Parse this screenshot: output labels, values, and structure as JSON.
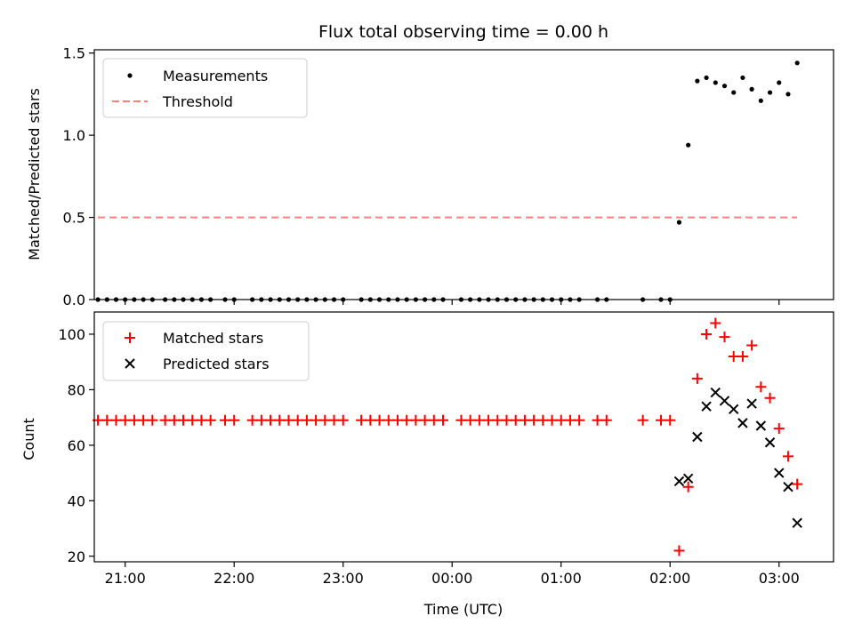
{
  "chart_data": [
    {
      "type": "scatter",
      "title": "Flux total observing time = 0.00 h",
      "xlabel": "",
      "ylabel": "Matched/Predicted stars",
      "xlim": [
        "20:43",
        "03:30"
      ],
      "ylim": [
        0,
        1.52
      ],
      "yticks": [
        "0.0",
        "0.5",
        "1.0",
        "1.5"
      ],
      "legend": {
        "position": "top-left",
        "entries": [
          "Measurements",
          "Threshold"
        ]
      },
      "colors": {
        "Measurements": "#000000",
        "Threshold": "#ff7f7f"
      },
      "series": [
        {
          "name": "Measurements",
          "points": [
            [
              "20:45",
              0.0
            ],
            [
              "20:50",
              0.0
            ],
            [
              "20:55",
              0.0
            ],
            [
              "21:00",
              0.0
            ],
            [
              "21:05",
              0.0
            ],
            [
              "21:10",
              0.0
            ],
            [
              "21:15",
              0.0
            ],
            [
              "21:22",
              0.0
            ],
            [
              "21:27",
              0.0
            ],
            [
              "21:32",
              0.0
            ],
            [
              "21:37",
              0.0
            ],
            [
              "21:42",
              0.0
            ],
            [
              "21:47",
              0.0
            ],
            [
              "21:55",
              0.0
            ],
            [
              "22:00",
              0.0
            ],
            [
              "22:10",
              0.0
            ],
            [
              "22:15",
              0.0
            ],
            [
              "22:20",
              0.0
            ],
            [
              "22:25",
              0.0
            ],
            [
              "22:30",
              0.0
            ],
            [
              "22:35",
              0.0
            ],
            [
              "22:40",
              0.0
            ],
            [
              "22:45",
              0.0
            ],
            [
              "22:50",
              0.0
            ],
            [
              "22:55",
              0.0
            ],
            [
              "23:00",
              0.0
            ],
            [
              "23:10",
              0.0
            ],
            [
              "23:15",
              0.0
            ],
            [
              "23:20",
              0.0
            ],
            [
              "23:25",
              0.0
            ],
            [
              "23:30",
              0.0
            ],
            [
              "23:35",
              0.0
            ],
            [
              "23:40",
              0.0
            ],
            [
              "23:45",
              0.0
            ],
            [
              "23:50",
              0.0
            ],
            [
              "23:55",
              0.0
            ],
            [
              "00:05",
              0.0
            ],
            [
              "00:10",
              0.0
            ],
            [
              "00:15",
              0.0
            ],
            [
              "00:20",
              0.0
            ],
            [
              "00:25",
              0.0
            ],
            [
              "00:30",
              0.0
            ],
            [
              "00:35",
              0.0
            ],
            [
              "00:40",
              0.0
            ],
            [
              "00:45",
              0.0
            ],
            [
              "00:50",
              0.0
            ],
            [
              "00:55",
              0.0
            ],
            [
              "01:00",
              0.0
            ],
            [
              "01:05",
              0.0
            ],
            [
              "01:10",
              0.0
            ],
            [
              "01:20",
              0.0
            ],
            [
              "01:25",
              0.0
            ],
            [
              "01:45",
              0.0
            ],
            [
              "01:55",
              0.0
            ],
            [
              "02:00",
              0.0
            ],
            [
              "02:05",
              0.47
            ],
            [
              "02:10",
              0.94
            ],
            [
              "02:15",
              1.33
            ],
            [
              "02:20",
              1.35
            ],
            [
              "02:25",
              1.32
            ],
            [
              "02:30",
              1.3
            ],
            [
              "02:35",
              1.26
            ],
            [
              "02:40",
              1.35
            ],
            [
              "02:45",
              1.28
            ],
            [
              "02:50",
              1.21
            ],
            [
              "02:55",
              1.26
            ],
            [
              "03:00",
              1.32
            ],
            [
              "03:05",
              1.25
            ],
            [
              "03:10",
              1.44
            ]
          ]
        },
        {
          "name": "Threshold",
          "points": [
            [
              "20:45",
              0.5
            ],
            [
              "03:10",
              0.5
            ]
          ]
        }
      ]
    },
    {
      "type": "scatter",
      "title": "",
      "xlabel": "Time (UTC)",
      "ylabel": "Count",
      "xlim": [
        "20:43",
        "03:30"
      ],
      "ylim": [
        18,
        108
      ],
      "xticks": [
        "21:00",
        "22:00",
        "23:00",
        "00:00",
        "01:00",
        "02:00",
        "03:00"
      ],
      "yticks": [
        "20",
        "40",
        "60",
        "80",
        "100"
      ],
      "legend": {
        "position": "top-left",
        "entries": [
          "Matched stars",
          "Predicted stars"
        ]
      },
      "colors": {
        "Matched stars": "#ff0000",
        "Predicted stars": "#000000"
      },
      "series": [
        {
          "name": "Matched stars",
          "points": [
            [
              "20:45",
              69
            ],
            [
              "20:50",
              69
            ],
            [
              "20:55",
              69
            ],
            [
              "21:00",
              69
            ],
            [
              "21:05",
              69
            ],
            [
              "21:10",
              69
            ],
            [
              "21:15",
              69
            ],
            [
              "21:22",
              69
            ],
            [
              "21:27",
              69
            ],
            [
              "21:32",
              69
            ],
            [
              "21:37",
              69
            ],
            [
              "21:42",
              69
            ],
            [
              "21:47",
              69
            ],
            [
              "21:55",
              69
            ],
            [
              "22:00",
              69
            ],
            [
              "22:10",
              69
            ],
            [
              "22:15",
              69
            ],
            [
              "22:20",
              69
            ],
            [
              "22:25",
              69
            ],
            [
              "22:30",
              69
            ],
            [
              "22:35",
              69
            ],
            [
              "22:40",
              69
            ],
            [
              "22:45",
              69
            ],
            [
              "22:50",
              69
            ],
            [
              "22:55",
              69
            ],
            [
              "23:00",
              69
            ],
            [
              "23:10",
              69
            ],
            [
              "23:15",
              69
            ],
            [
              "23:20",
              69
            ],
            [
              "23:25",
              69
            ],
            [
              "23:30",
              69
            ],
            [
              "23:35",
              69
            ],
            [
              "23:40",
              69
            ],
            [
              "23:45",
              69
            ],
            [
              "23:50",
              69
            ],
            [
              "23:55",
              69
            ],
            [
              "00:05",
              69
            ],
            [
              "00:10",
              69
            ],
            [
              "00:15",
              69
            ],
            [
              "00:20",
              69
            ],
            [
              "00:25",
              69
            ],
            [
              "00:30",
              69
            ],
            [
              "00:35",
              69
            ],
            [
              "00:40",
              69
            ],
            [
              "00:45",
              69
            ],
            [
              "00:50",
              69
            ],
            [
              "00:55",
              69
            ],
            [
              "01:00",
              69
            ],
            [
              "01:05",
              69
            ],
            [
              "01:10",
              69
            ],
            [
              "01:20",
              69
            ],
            [
              "01:25",
              69
            ],
            [
              "01:45",
              69
            ],
            [
              "01:55",
              69
            ],
            [
              "02:00",
              69
            ],
            [
              "02:05",
              22
            ],
            [
              "02:10",
              45
            ],
            [
              "02:15",
              84
            ],
            [
              "02:20",
              100
            ],
            [
              "02:25",
              104
            ],
            [
              "02:30",
              99
            ],
            [
              "02:35",
              92
            ],
            [
              "02:40",
              92
            ],
            [
              "02:45",
              96
            ],
            [
              "02:50",
              81
            ],
            [
              "02:55",
              77
            ],
            [
              "03:00",
              66
            ],
            [
              "03:05",
              56
            ],
            [
              "03:10",
              46
            ]
          ]
        },
        {
          "name": "Predicted stars",
          "points": [
            [
              "02:05",
              47
            ],
            [
              "02:10",
              48
            ],
            [
              "02:15",
              63
            ],
            [
              "02:20",
              74
            ],
            [
              "02:25",
              79
            ],
            [
              "02:30",
              76
            ],
            [
              "02:35",
              73
            ],
            [
              "02:40",
              68
            ],
            [
              "02:45",
              75
            ],
            [
              "02:50",
              67
            ],
            [
              "02:55",
              61
            ],
            [
              "03:00",
              50
            ],
            [
              "03:05",
              45
            ],
            [
              "03:10",
              32
            ]
          ]
        }
      ]
    }
  ]
}
